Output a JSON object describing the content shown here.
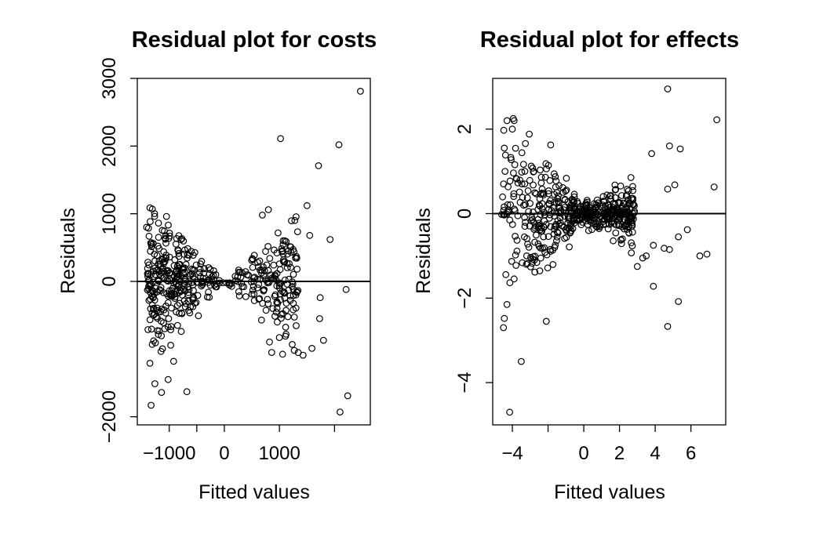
{
  "figure": {
    "background": "#ffffff",
    "foreground": "#000000"
  },
  "chart_data": [
    {
      "type": "scatter",
      "title": "Residual plot for costs",
      "xlabel": "Fitted values",
      "ylabel": "Residuals",
      "xlim": [
        -1580,
        2650
      ],
      "ylim": [
        -2120,
        3000
      ],
      "xticks": [
        {
          "v": -1000,
          "label": "−1000"
        },
        {
          "v": 0,
          "label": "0"
        },
        {
          "v": 1000,
          "label": "1000"
        }
      ],
      "xticks_unlabeled": [
        -500,
        2000
      ],
      "yticks": [
        {
          "v": -2000,
          "label": "−2000"
        },
        {
          "v": 0,
          "label": "0"
        },
        {
          "v": 1000,
          "label": "1000"
        },
        {
          "v": 2000,
          "label": "2000"
        },
        {
          "v": 3000,
          "label": "3000"
        }
      ],
      "hline": 0,
      "marker": "open-circle",
      "cloud": {
        "n": 470,
        "seed": 7,
        "xmin": -1400,
        "xmax": 1600,
        "slope_left": -0.78,
        "slope_right": 0.7,
        "spread_factor": 0.55,
        "concentration": 0.55
      },
      "outliers": [
        [
          2470,
          2810
        ],
        [
          1020,
          2110
        ],
        [
          2080,
          2020
        ],
        [
          1500,
          1120
        ],
        [
          1710,
          1710
        ],
        [
          1920,
          620
        ],
        [
          1550,
          680
        ],
        [
          2210,
          -120
        ],
        [
          2240,
          -1690
        ],
        [
          2100,
          -1930
        ],
        [
          1800,
          -870
        ],
        [
          1730,
          -550
        ],
        [
          1740,
          -240
        ],
        [
          1590,
          -990
        ],
        [
          1430,
          -1090
        ],
        [
          1270,
          -1020
        ],
        [
          1120,
          -780
        ],
        [
          1000,
          -830
        ],
        [
          860,
          -1050
        ],
        [
          1210,
          430
        ],
        [
          1280,
          900
        ],
        [
          690,
          980
        ],
        [
          800,
          1060
        ],
        [
          -1410,
          800
        ],
        [
          -1350,
          -1210
        ],
        [
          -1330,
          -1830
        ],
        [
          -1140,
          -1640
        ],
        [
          -1020,
          -1450
        ],
        [
          -680,
          -1630
        ],
        [
          -1050,
          960
        ],
        [
          -990,
          670
        ],
        [
          -1290,
          560
        ],
        [
          -1220,
          -430
        ],
        [
          -1310,
          -930
        ],
        [
          -920,
          -1180
        ]
      ]
    },
    {
      "type": "scatter",
      "title": "Residual plot for effects",
      "xlabel": "Fitted values",
      "ylabel": "Residuals",
      "xlim": [
        -5.1,
        7.95
      ],
      "ylim": [
        -5.0,
        3.2
      ],
      "xticks": [
        {
          "v": -4,
          "label": "−4"
        },
        {
          "v": 0,
          "label": "0"
        },
        {
          "v": 2,
          "label": "2"
        },
        {
          "v": 4,
          "label": "4"
        },
        {
          "v": 6,
          "label": "6"
        }
      ],
      "xticks_unlabeled": [
        -2
      ],
      "yticks": [
        {
          "v": -4,
          "label": "−4"
        },
        {
          "v": -2,
          "label": "−2"
        },
        {
          "v": 0,
          "label": "0"
        },
        {
          "v": 2,
          "label": "2"
        }
      ],
      "hline": 0,
      "marker": "open-circle",
      "cloud": {
        "n": 520,
        "seed": 13,
        "xmin": -4.6,
        "xmax": 3.5,
        "center": -0.1,
        "spread_left": 0.65,
        "spread_right": 0.2,
        "spread_base": 0.12,
        "concentration": 0.5
      },
      "outliers": [
        [
          4.7,
          2.95
        ],
        [
          7.45,
          2.22
        ],
        [
          4.8,
          1.6
        ],
        [
          5.4,
          1.53
        ],
        [
          3.8,
          1.42
        ],
        [
          4.7,
          0.58
        ],
        [
          5.1,
          0.68
        ],
        [
          7.3,
          0.63
        ],
        [
          5.8,
          -0.38
        ],
        [
          6.5,
          -1.0
        ],
        [
          6.9,
          -0.96
        ],
        [
          5.3,
          -0.55
        ],
        [
          4.5,
          -0.82
        ],
        [
          4.8,
          -0.85
        ],
        [
          3.9,
          -0.75
        ],
        [
          4.7,
          -2.67
        ],
        [
          5.3,
          -2.08
        ],
        [
          3.9,
          -1.72
        ],
        [
          3.5,
          -1.0
        ],
        [
          3.3,
          -1.05
        ],
        [
          3.0,
          -1.25
        ],
        [
          -3.5,
          -3.5
        ],
        [
          -4.15,
          -4.7
        ],
        [
          -2.1,
          -2.55
        ],
        [
          -4.5,
          -2.7
        ],
        [
          -4.45,
          -2.48
        ],
        [
          -4.3,
          -2.15
        ],
        [
          -4.3,
          2.2
        ],
        [
          -3.95,
          2.25
        ],
        [
          -3.9,
          2.2
        ],
        [
          -4.0,
          2.0
        ],
        [
          -4.45,
          1.55
        ],
        [
          -4.6,
          -0.02
        ],
        [
          -4.5,
          -0.02
        ]
      ]
    }
  ]
}
